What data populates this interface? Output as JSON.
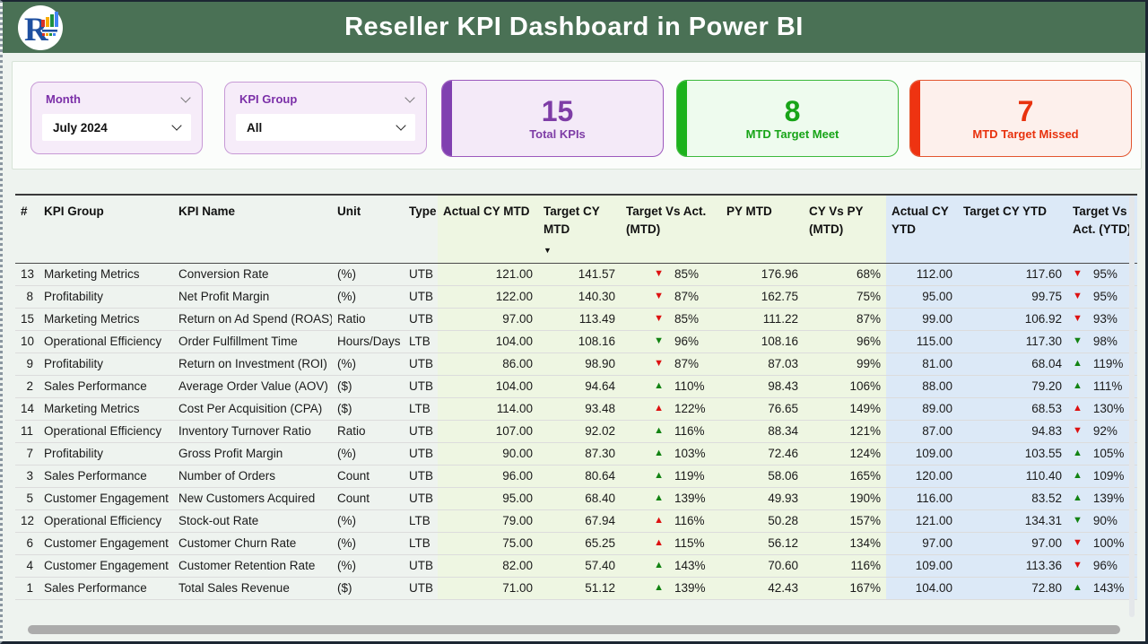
{
  "header": {
    "title": "Reseller KPI Dashboard in Power BI"
  },
  "filters": [
    {
      "label": "Month",
      "value": "July 2024"
    },
    {
      "label": "KPI Group",
      "value": "All"
    }
  ],
  "cards": [
    {
      "value": "15",
      "label": "Total KPIs",
      "accent": "#8040b0"
    },
    {
      "value": "8",
      "label": "MTD Target Meet",
      "accent": "#1db21d"
    },
    {
      "value": "7",
      "label": "MTD Target Missed",
      "accent": "#ee3311"
    }
  ],
  "table": {
    "columns": [
      "#",
      "KPI Group",
      "KPI Name",
      "Unit",
      "Type",
      "Actual CY MTD",
      "Target CY MTD",
      "Target Vs Act. (MTD)",
      "PY MTD",
      "CY Vs PY (MTD)",
      "Actual CY YTD",
      "Target CY YTD",
      "Target Vs Act. (YTD)"
    ],
    "sort_column": "Target CY MTD",
    "sort_direction": "desc",
    "zone_colors": {
      "mtd": "#eef6e2",
      "ytd": "#dce9f7"
    },
    "arrow_colors": {
      "red": "#dd1111",
      "green": "#128312"
    },
    "rows": [
      {
        "num": "13",
        "group": "Marketing Metrics",
        "name": "Conversion Rate",
        "unit": "(%)",
        "type": "UTB",
        "actual_mtd": "121.00",
        "target_mtd": "141.57",
        "tva_mtd": {
          "dir": "down",
          "color": "red",
          "pct": "85%"
        },
        "py_mtd": "176.96",
        "cy_vs_py_mtd": "68%",
        "actual_ytd": "112.00",
        "target_ytd": "117.60",
        "tva_ytd": {
          "dir": "down",
          "color": "red",
          "pct": "95%"
        }
      },
      {
        "num": "8",
        "group": "Profitability",
        "name": "Net Profit Margin",
        "unit": "(%)",
        "type": "UTB",
        "actual_mtd": "122.00",
        "target_mtd": "140.30",
        "tva_mtd": {
          "dir": "down",
          "color": "red",
          "pct": "87%"
        },
        "py_mtd": "162.75",
        "cy_vs_py_mtd": "75%",
        "actual_ytd": "95.00",
        "target_ytd": "99.75",
        "tva_ytd": {
          "dir": "down",
          "color": "red",
          "pct": "95%"
        }
      },
      {
        "num": "15",
        "group": "Marketing Metrics",
        "name": "Return on Ad Spend (ROAS)",
        "unit": "Ratio",
        "type": "UTB",
        "actual_mtd": "97.00",
        "target_mtd": "113.49",
        "tva_mtd": {
          "dir": "down",
          "color": "red",
          "pct": "85%"
        },
        "py_mtd": "111.22",
        "cy_vs_py_mtd": "87%",
        "actual_ytd": "99.00",
        "target_ytd": "106.92",
        "tva_ytd": {
          "dir": "down",
          "color": "red",
          "pct": "93%"
        }
      },
      {
        "num": "10",
        "group": "Operational Efficiency",
        "name": "Order Fulfillment Time",
        "unit": "Hours/Days",
        "type": "LTB",
        "actual_mtd": "104.00",
        "target_mtd": "108.16",
        "tva_mtd": {
          "dir": "down",
          "color": "green",
          "pct": "96%"
        },
        "py_mtd": "108.16",
        "cy_vs_py_mtd": "96%",
        "actual_ytd": "115.00",
        "target_ytd": "117.30",
        "tva_ytd": {
          "dir": "down",
          "color": "green",
          "pct": "98%"
        }
      },
      {
        "num": "9",
        "group": "Profitability",
        "name": "Return on Investment (ROI)",
        "unit": "(%)",
        "type": "UTB",
        "actual_mtd": "86.00",
        "target_mtd": "98.90",
        "tva_mtd": {
          "dir": "down",
          "color": "red",
          "pct": "87%"
        },
        "py_mtd": "87.03",
        "cy_vs_py_mtd": "99%",
        "actual_ytd": "81.00",
        "target_ytd": "68.04",
        "tva_ytd": {
          "dir": "up",
          "color": "green",
          "pct": "119%"
        }
      },
      {
        "num": "2",
        "group": "Sales Performance",
        "name": "Average Order Value (AOV)",
        "unit": "($)",
        "type": "UTB",
        "actual_mtd": "104.00",
        "target_mtd": "94.64",
        "tva_mtd": {
          "dir": "up",
          "color": "green",
          "pct": "110%"
        },
        "py_mtd": "98.43",
        "cy_vs_py_mtd": "106%",
        "actual_ytd": "88.00",
        "target_ytd": "79.20",
        "tva_ytd": {
          "dir": "up",
          "color": "green",
          "pct": "111%"
        }
      },
      {
        "num": "14",
        "group": "Marketing Metrics",
        "name": "Cost Per Acquisition (CPA)",
        "unit": "($)",
        "type": "LTB",
        "actual_mtd": "114.00",
        "target_mtd": "93.48",
        "tva_mtd": {
          "dir": "up",
          "color": "red",
          "pct": "122%"
        },
        "py_mtd": "76.65",
        "cy_vs_py_mtd": "149%",
        "actual_ytd": "89.00",
        "target_ytd": "68.53",
        "tva_ytd": {
          "dir": "up",
          "color": "red",
          "pct": "130%"
        }
      },
      {
        "num": "11",
        "group": "Operational Efficiency",
        "name": "Inventory Turnover Ratio",
        "unit": "Ratio",
        "type": "UTB",
        "actual_mtd": "107.00",
        "target_mtd": "92.02",
        "tva_mtd": {
          "dir": "up",
          "color": "green",
          "pct": "116%"
        },
        "py_mtd": "88.34",
        "cy_vs_py_mtd": "121%",
        "actual_ytd": "87.00",
        "target_ytd": "94.83",
        "tva_ytd": {
          "dir": "down",
          "color": "red",
          "pct": "92%"
        }
      },
      {
        "num": "7",
        "group": "Profitability",
        "name": "Gross Profit Margin",
        "unit": "(%)",
        "type": "UTB",
        "actual_mtd": "90.00",
        "target_mtd": "87.30",
        "tva_mtd": {
          "dir": "up",
          "color": "green",
          "pct": "103%"
        },
        "py_mtd": "72.46",
        "cy_vs_py_mtd": "124%",
        "actual_ytd": "109.00",
        "target_ytd": "103.55",
        "tva_ytd": {
          "dir": "up",
          "color": "green",
          "pct": "105%"
        }
      },
      {
        "num": "3",
        "group": "Sales Performance",
        "name": "Number of Orders",
        "unit": "Count",
        "type": "UTB",
        "actual_mtd": "96.00",
        "target_mtd": "80.64",
        "tva_mtd": {
          "dir": "up",
          "color": "green",
          "pct": "119%"
        },
        "py_mtd": "58.06",
        "cy_vs_py_mtd": "165%",
        "actual_ytd": "120.00",
        "target_ytd": "110.40",
        "tva_ytd": {
          "dir": "up",
          "color": "green",
          "pct": "109%"
        }
      },
      {
        "num": "5",
        "group": "Customer Engagement",
        "name": "New Customers Acquired",
        "unit": "Count",
        "type": "UTB",
        "actual_mtd": "95.00",
        "target_mtd": "68.40",
        "tva_mtd": {
          "dir": "up",
          "color": "green",
          "pct": "139%"
        },
        "py_mtd": "49.93",
        "cy_vs_py_mtd": "190%",
        "actual_ytd": "116.00",
        "target_ytd": "83.52",
        "tva_ytd": {
          "dir": "up",
          "color": "green",
          "pct": "139%"
        }
      },
      {
        "num": "12",
        "group": "Operational Efficiency",
        "name": "Stock-out Rate",
        "unit": "(%)",
        "type": "LTB",
        "actual_mtd": "79.00",
        "target_mtd": "67.94",
        "tva_mtd": {
          "dir": "up",
          "color": "red",
          "pct": "116%"
        },
        "py_mtd": "50.28",
        "cy_vs_py_mtd": "157%",
        "actual_ytd": "121.00",
        "target_ytd": "134.31",
        "tva_ytd": {
          "dir": "down",
          "color": "green",
          "pct": "90%"
        }
      },
      {
        "num": "6",
        "group": "Customer Engagement",
        "name": "Customer Churn Rate",
        "unit": "(%)",
        "type": "LTB",
        "actual_mtd": "75.00",
        "target_mtd": "65.25",
        "tva_mtd": {
          "dir": "up",
          "color": "red",
          "pct": "115%"
        },
        "py_mtd": "56.12",
        "cy_vs_py_mtd": "134%",
        "actual_ytd": "97.00",
        "target_ytd": "97.00",
        "tva_ytd": {
          "dir": "down",
          "color": "red",
          "pct": "100%"
        }
      },
      {
        "num": "4",
        "group": "Customer Engagement",
        "name": "Customer Retention Rate",
        "unit": "(%)",
        "type": "UTB",
        "actual_mtd": "82.00",
        "target_mtd": "57.40",
        "tva_mtd": {
          "dir": "up",
          "color": "green",
          "pct": "143%"
        },
        "py_mtd": "70.60",
        "cy_vs_py_mtd": "116%",
        "actual_ytd": "109.00",
        "target_ytd": "113.36",
        "tva_ytd": {
          "dir": "down",
          "color": "red",
          "pct": "96%"
        }
      },
      {
        "num": "1",
        "group": "Sales Performance",
        "name": "Total Sales Revenue",
        "unit": "($)",
        "type": "UTB",
        "actual_mtd": "71.00",
        "target_mtd": "51.12",
        "tva_mtd": {
          "dir": "up",
          "color": "green",
          "pct": "139%"
        },
        "py_mtd": "42.43",
        "cy_vs_py_mtd": "167%",
        "actual_ytd": "104.00",
        "target_ytd": "72.80",
        "tva_ytd": {
          "dir": "up",
          "color": "green",
          "pct": "143%"
        }
      }
    ]
  }
}
